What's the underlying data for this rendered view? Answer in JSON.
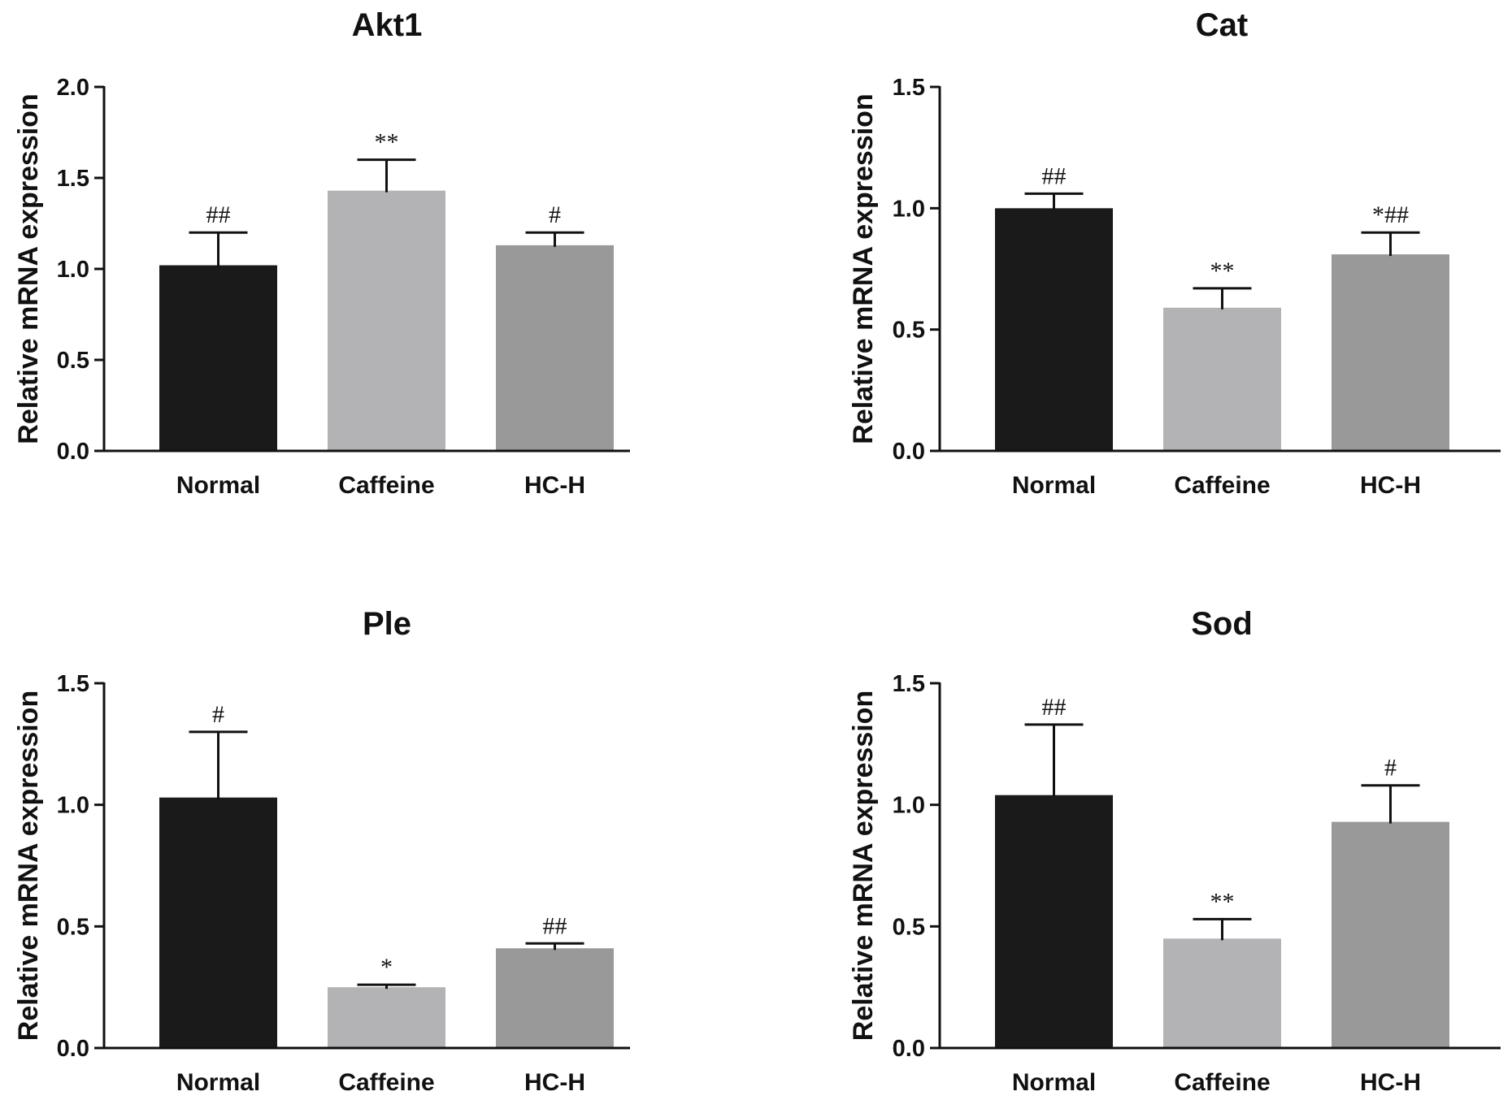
{
  "chart_data": [
    {
      "type": "bar",
      "title": "Akt1",
      "xlabel": "",
      "ylabel": "Relative mRNA expression",
      "categories": [
        "Normal",
        "Caffeine",
        "HC-H"
      ],
      "values": [
        1.02,
        1.43,
        1.13
      ],
      "errors": [
        0.18,
        0.17,
        0.07
      ],
      "annotations": [
        "##",
        "**",
        "#"
      ],
      "ylim": [
        0,
        2.0
      ],
      "yticks": [
        0.0,
        0.5,
        1.0,
        1.5,
        2.0
      ],
      "ytick_labels": [
        "0.0",
        "0.5",
        "1.0",
        "1.5",
        "2.0"
      ],
      "colors": [
        "#1a1a1a",
        "#b3b3b5",
        "#999999"
      ]
    },
    {
      "type": "bar",
      "title": "Cat",
      "xlabel": "",
      "ylabel": "Relative mRNA expression",
      "categories": [
        "Normal",
        "Caffeine",
        "HC-H"
      ],
      "values": [
        1.0,
        0.59,
        0.81
      ],
      "errors": [
        0.06,
        0.08,
        0.09
      ],
      "annotations": [
        "##",
        "**",
        "*##"
      ],
      "ylim": [
        0,
        1.5
      ],
      "yticks": [
        0.0,
        0.5,
        1.0,
        1.5
      ],
      "ytick_labels": [
        "0.0",
        "0.5",
        "1.0",
        "1.5"
      ],
      "colors": [
        "#1a1a1a",
        "#b3b3b5",
        "#999999"
      ]
    },
    {
      "type": "bar",
      "title": "Ple",
      "xlabel": "",
      "ylabel": "Relative mRNA expression",
      "categories": [
        "Normal",
        "Caffeine",
        "HC-H"
      ],
      "values": [
        1.03,
        0.25,
        0.41
      ],
      "errors": [
        0.27,
        0.01,
        0.02
      ],
      "annotations": [
        "#",
        "*",
        "##"
      ],
      "ylim": [
        0,
        1.5
      ],
      "yticks": [
        0.0,
        0.5,
        1.0,
        1.5
      ],
      "ytick_labels": [
        "0.0",
        "0.5",
        "1.0",
        "1.5"
      ],
      "colors": [
        "#1a1a1a",
        "#b3b3b5",
        "#999999"
      ]
    },
    {
      "type": "bar",
      "title": "Sod",
      "xlabel": "",
      "ylabel": "Relative mRNA expression",
      "categories": [
        "Normal",
        "Caffeine",
        "HC-H"
      ],
      "values": [
        1.04,
        0.45,
        0.93
      ],
      "errors": [
        0.29,
        0.08,
        0.15
      ],
      "annotations": [
        "##",
        "**",
        "#"
      ],
      "ylim": [
        0,
        1.5
      ],
      "yticks": [
        0.0,
        0.5,
        1.0,
        1.5
      ],
      "ytick_labels": [
        "0.0",
        "0.5",
        "1.0",
        "1.5"
      ],
      "colors": [
        "#1a1a1a",
        "#b3b3b5",
        "#999999"
      ]
    }
  ]
}
